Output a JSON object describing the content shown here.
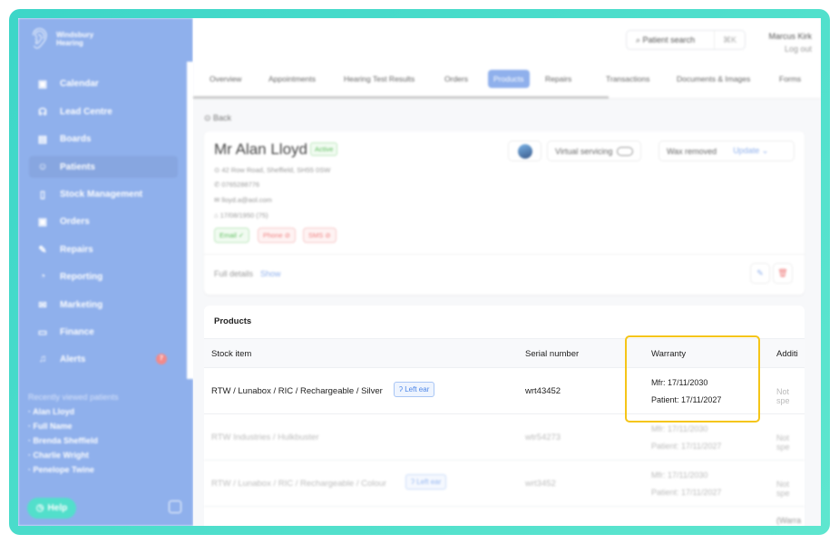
{
  "brand": {
    "line1": "Windsbury",
    "line2": "Hearing"
  },
  "sidebar": {
    "items": [
      {
        "label": "Calendar",
        "icon": "calendar-icon",
        "glyph": "▣"
      },
      {
        "label": "Lead Centre",
        "icon": "headset-icon",
        "glyph": "☊"
      },
      {
        "label": "Boards",
        "icon": "board-icon",
        "glyph": "▤"
      },
      {
        "label": "Patients",
        "icon": "patient-icon",
        "glyph": "☺"
      },
      {
        "label": "Stock Management",
        "icon": "clipboard-icon",
        "glyph": "▯"
      },
      {
        "label": "Orders",
        "icon": "orders-icon",
        "glyph": "▣"
      },
      {
        "label": "Repairs",
        "icon": "wrench-icon",
        "glyph": "✎"
      },
      {
        "label": "Reporting",
        "icon": "chart-pie-icon",
        "glyph": "◔"
      },
      {
        "label": "Marketing",
        "icon": "mail-icon",
        "glyph": "✉"
      },
      {
        "label": "Finance",
        "icon": "card-icon",
        "glyph": "▭"
      },
      {
        "label": "Alerts",
        "icon": "bell-icon",
        "glyph": "♫",
        "badge": "7"
      }
    ],
    "recent_title": "Recently viewed patients",
    "recent": [
      "Alan Lloyd",
      "Full Name",
      "Brenda Sheffield",
      "Charlie Wright",
      "Penelope Twine"
    ],
    "help": "Help"
  },
  "topbar": {
    "search_placeholder": "Patient search",
    "shortcut": "⌘K",
    "user": "Marcus Kirk",
    "logout": "Log out"
  },
  "tabs": [
    "Overview",
    "Appointments",
    "Hearing Test Results",
    "Orders",
    "Products",
    "Repairs",
    "Transactions",
    "Documents & Images",
    "Forms"
  ],
  "active_tab": "Products",
  "back": "Back",
  "patient": {
    "name": "Mr Alan Lloyd",
    "status": "Active",
    "address": "42 Row Road, Sheffield, SH55 0SW",
    "phone": "0765288776",
    "email": "lloyd.a@aol.com",
    "dob": "17/08/1950 (75)",
    "contact": [
      "Email",
      "Phone",
      "SMS"
    ],
    "full_details": "Full details",
    "show": "Show",
    "virtual_servicing": "Virtual servicing",
    "wax": "Wax removed",
    "update": "Update"
  },
  "products": {
    "title": "Products",
    "columns": [
      "Stock item",
      "Serial number",
      "Warranty",
      "Additi"
    ],
    "rows": [
      {
        "item": "RTW / Lunabox / RIC / Rechargeable / Silver",
        "ear": "Left ear",
        "serial": "wrt43452",
        "mfr": "Mfr: 17/11/2030",
        "patient": "Patient: 17/11/2027",
        "additional": "Not spe"
      },
      {
        "item": "RTW Industries / Hulkbuster",
        "ear": "",
        "serial": "wtr54273",
        "mfr": "Mfr: 17/11/2030",
        "patient": "Patient: 17/11/2027",
        "additional": "Not spe"
      },
      {
        "item": "RTW / Lunabox / RIC / Rechargeable / Colour",
        "ear": "Left ear",
        "serial": "wrt3452",
        "mfr": "Mfr: 17/11/2030",
        "patient": "Patient: 17/11/2027",
        "additional": "Not spe"
      },
      {
        "item": "",
        "ear": "",
        "serial": "",
        "mfr": "",
        "patient": "",
        "additional": "(Warra"
      }
    ]
  },
  "colors": {
    "sidebar": "#8fb0ec",
    "frame": "#3dd6c8",
    "highlight": "#f5c518"
  }
}
